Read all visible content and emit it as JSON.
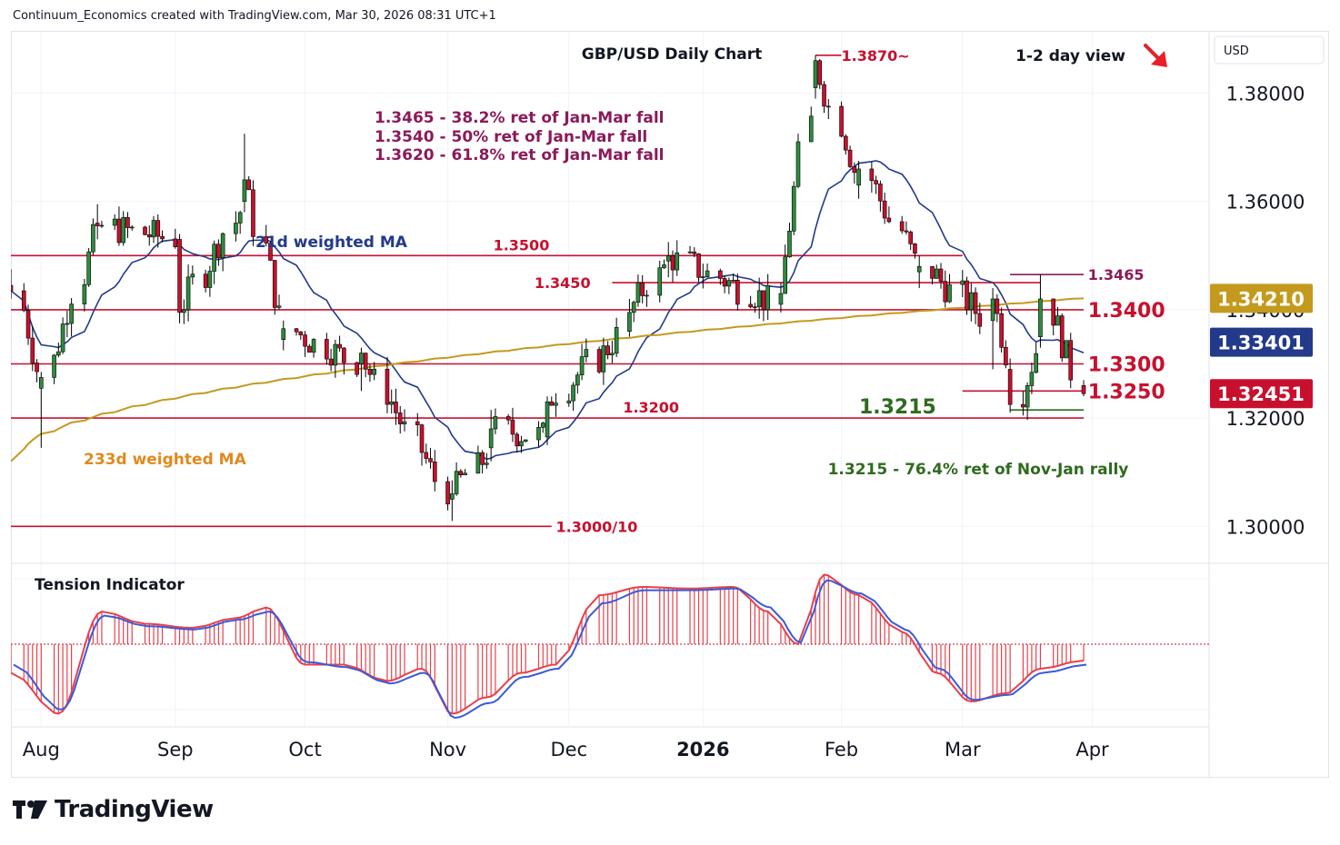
{
  "header": {
    "text": "Continuum_Economics created with TradingView.com, Mar 30, 2026 08:31 UTC+1"
  },
  "brand": {
    "name": "TradingView",
    "logo_icon": "tradingview-logo-icon"
  },
  "chart_data": {
    "type": "candlestick",
    "title": "GBP/USD Daily Chart",
    "view_label": "1-2 day view",
    "view_icon": "down-right-arrow-icon",
    "currency": "USD",
    "ylim": [
      1.2935,
      1.3915
    ],
    "y_ticks": [
      {
        "v": 1.3,
        "label": "1.30000"
      },
      {
        "v": 1.32,
        "label": "1.32000"
      },
      {
        "v": 1.34,
        "label": "1.34000"
      },
      {
        "v": 1.36,
        "label": "1.36000"
      },
      {
        "v": 1.38,
        "label": "1.38000"
      }
    ],
    "x_ticks": [
      {
        "date": "2025-08-01",
        "label": "Aug",
        "bold": false
      },
      {
        "date": "2025-09-01",
        "label": "Sep",
        "bold": false
      },
      {
        "date": "2025-10-01",
        "label": "Oct",
        "bold": false
      },
      {
        "date": "2025-11-03",
        "label": "Nov",
        "bold": false
      },
      {
        "date": "2025-12-01",
        "label": "Dec",
        "bold": false
      },
      {
        "date": "2026-01-01",
        "label": "2026",
        "bold": true
      },
      {
        "date": "2026-02-02",
        "label": "Feb",
        "bold": false
      },
      {
        "date": "2026-03-02",
        "label": "Mar",
        "bold": false
      },
      {
        "date": "2026-04-01",
        "label": "Apr",
        "bold": false
      }
    ],
    "price_badges": [
      {
        "v": 1.3421,
        "label": "1.34210",
        "color": "#c49a1e",
        "name": "ma233-price-badge"
      },
      {
        "v": 1.33401,
        "label": "1.33401",
        "color": "#233a8a",
        "name": "ma21-price-badge"
      },
      {
        "v": 1.32451,
        "label": "1.32451",
        "color": "#c8102e",
        "name": "last-price-badge"
      }
    ],
    "levels": [
      {
        "v": 1.35,
        "label": "1.3500",
        "from": "2025-07-25",
        "to": "2026-03-02",
        "label_date": "2025-11-20",
        "color": "#c8102e"
      },
      {
        "v": 1.345,
        "label": "1.3450",
        "from": "2025-12-11",
        "to": "2026-03-20",
        "label_date": "2025-12-06",
        "color": "#c8102e"
      },
      {
        "v": 1.34,
        "label": "1.3400",
        "from": "2025-07-25",
        "to": "2026-03-30",
        "label_date": "2026-03-31",
        "color": "#c8102e"
      },
      {
        "v": 1.33,
        "label": "1.3300",
        "from": "2025-07-25",
        "to": "2026-03-30",
        "label_date": "2026-03-31",
        "color": "#c8102e"
      },
      {
        "v": 1.325,
        "label": "1.3250",
        "from": "2026-03-02",
        "to": "2026-03-30",
        "label_date": "2026-03-31",
        "color": "#c8102e"
      },
      {
        "v": 1.32,
        "label": "1.3200",
        "from": "2025-07-25",
        "to": "2026-03-30",
        "label_date": "2025-12-20",
        "color": "#c8102e"
      },
      {
        "v": 1.3,
        "label": "1.3000/10",
        "from": "2025-07-25",
        "to": "2025-11-27",
        "label_date": "2025-11-28",
        "color": "#c8102e"
      },
      {
        "v": 1.3465,
        "label": "1.3465",
        "from": "2026-03-13",
        "to": "2026-03-30",
        "label_date": "2026-03-31",
        "color": "#8b1a5a"
      },
      {
        "v": 1.3215,
        "label": "1.3215",
        "from": "2026-03-13",
        "to": "2026-03-30",
        "label_date": "2026-02-15",
        "color": "#2e6b1e"
      },
      {
        "v": 1.387,
        "label": "1.3870~",
        "from": "2026-01-27",
        "to": "2026-02-02",
        "label_date": "2026-02-02",
        "color": "#c8102e"
      }
    ],
    "annotations": [
      {
        "text": "1.3465 - 38.2% ret of Jan-Mar fall",
        "color": "#8b1a5a"
      },
      {
        "text": "1.3540 - 50% ret of Jan-Mar fall",
        "color": "#8b1a5a"
      },
      {
        "text": "1.3620 - 61.8% ret of Jan-Mar fall",
        "color": "#8b1a5a"
      },
      {
        "text": "1.3215 - 76.4% ret of Nov-Jan rally",
        "color": "#2e6b1e"
      }
    ],
    "ma_labels": {
      "ma21": {
        "text": "21d weighted MA",
        "color": "#233a8a"
      },
      "ma233": {
        "text": "233d weighted MA",
        "color": "#e08a1e"
      }
    },
    "key_ohlc": [
      {
        "date": "2025-07-25",
        "o": 1.3445,
        "h": 1.3475,
        "l": 1.342,
        "c": 1.3435
      },
      {
        "date": "2025-08-01",
        "o": 1.3255,
        "h": 1.3285,
        "l": 1.3145,
        "c": 1.3275
      },
      {
        "date": "2025-08-14",
        "o": 1.356,
        "h": 1.3595,
        "l": 1.353,
        "c": 1.3555
      },
      {
        "date": "2025-09-02",
        "o": 1.353,
        "h": 1.354,
        "l": 1.3375,
        "c": 1.3395
      },
      {
        "date": "2025-09-17",
        "o": 1.36,
        "h": 1.3725,
        "l": 1.358,
        "c": 1.364
      },
      {
        "date": "2025-09-26",
        "o": 1.3345,
        "h": 1.338,
        "l": 1.3325,
        "c": 1.3365
      },
      {
        "date": "2025-10-14",
        "o": 1.33,
        "h": 1.333,
        "l": 1.325,
        "c": 1.332
      },
      {
        "date": "2025-11-04",
        "o": 1.305,
        "h": 1.3085,
        "l": 1.301,
        "c": 1.306
      },
      {
        "date": "2025-11-13",
        "o": 1.3145,
        "h": 1.3215,
        "l": 1.312,
        "c": 1.318
      },
      {
        "date": "2025-11-26",
        "o": 1.3165,
        "h": 1.324,
        "l": 1.315,
        "c": 1.323
      },
      {
        "date": "2025-12-15",
        "o": 1.336,
        "h": 1.342,
        "l": 1.335,
        "c": 1.3395
      },
      {
        "date": "2025-12-24",
        "o": 1.349,
        "h": 1.3525,
        "l": 1.346,
        "c": 1.35
      },
      {
        "date": "2026-01-19",
        "o": 1.341,
        "h": 1.345,
        "l": 1.3395,
        "c": 1.343
      },
      {
        "date": "2026-01-27",
        "o": 1.381,
        "h": 1.387,
        "l": 1.379,
        "c": 1.386
      },
      {
        "date": "2026-02-06",
        "o": 1.363,
        "h": 1.3675,
        "l": 1.3605,
        "c": 1.366
      },
      {
        "date": "2026-02-20",
        "o": 1.347,
        "h": 1.35,
        "l": 1.344,
        "c": 1.348
      },
      {
        "date": "2026-03-09",
        "o": 1.338,
        "h": 1.344,
        "l": 1.329,
        "c": 1.342
      },
      {
        "date": "2026-03-13",
        "o": 1.329,
        "h": 1.331,
        "l": 1.321,
        "c": 1.3225
      },
      {
        "date": "2026-03-20",
        "o": 1.335,
        "h": 1.3465,
        "l": 1.333,
        "c": 1.342
      },
      {
        "date": "2026-03-30",
        "o": 1.326,
        "h": 1.327,
        "l": 1.324,
        "c": 1.3245
      }
    ],
    "tension_indicator": {
      "title": "Tension Indicator",
      "ylim": [
        -1.0,
        1.0
      ],
      "dates": [
        "2025-07-25",
        "2025-08-05",
        "2025-08-15",
        "2025-08-25",
        "2025-09-05",
        "2025-09-15",
        "2025-09-22",
        "2025-10-01",
        "2025-10-10",
        "2025-10-20",
        "2025-10-28",
        "2025-11-04",
        "2025-11-12",
        "2025-11-20",
        "2025-11-28",
        "2025-12-08",
        "2025-12-18",
        "2025-12-29",
        "2026-01-08",
        "2026-01-16",
        "2026-01-23",
        "2026-01-29",
        "2026-02-06",
        "2026-02-16",
        "2026-02-24",
        "2026-03-04",
        "2026-03-12",
        "2026-03-20",
        "2026-03-30"
      ],
      "values": [
        -0.35,
        -0.85,
        0.4,
        0.25,
        0.2,
        0.32,
        0.45,
        -0.25,
        -0.25,
        -0.45,
        -0.3,
        -0.85,
        -0.65,
        -0.35,
        -0.25,
        0.6,
        0.7,
        0.68,
        0.7,
        0.4,
        0.0,
        0.85,
        0.6,
        0.15,
        -0.35,
        -0.7,
        -0.6,
        -0.3,
        -0.2
      ],
      "signal": [
        -0.25,
        -0.8,
        0.35,
        0.22,
        0.18,
        0.3,
        0.4,
        -0.22,
        -0.28,
        -0.48,
        -0.35,
        -0.9,
        -0.72,
        -0.4,
        -0.3,
        0.5,
        0.66,
        0.66,
        0.68,
        0.45,
        0.02,
        0.78,
        0.62,
        0.18,
        -0.3,
        -0.68,
        -0.62,
        -0.35,
        -0.25
      ]
    }
  }
}
